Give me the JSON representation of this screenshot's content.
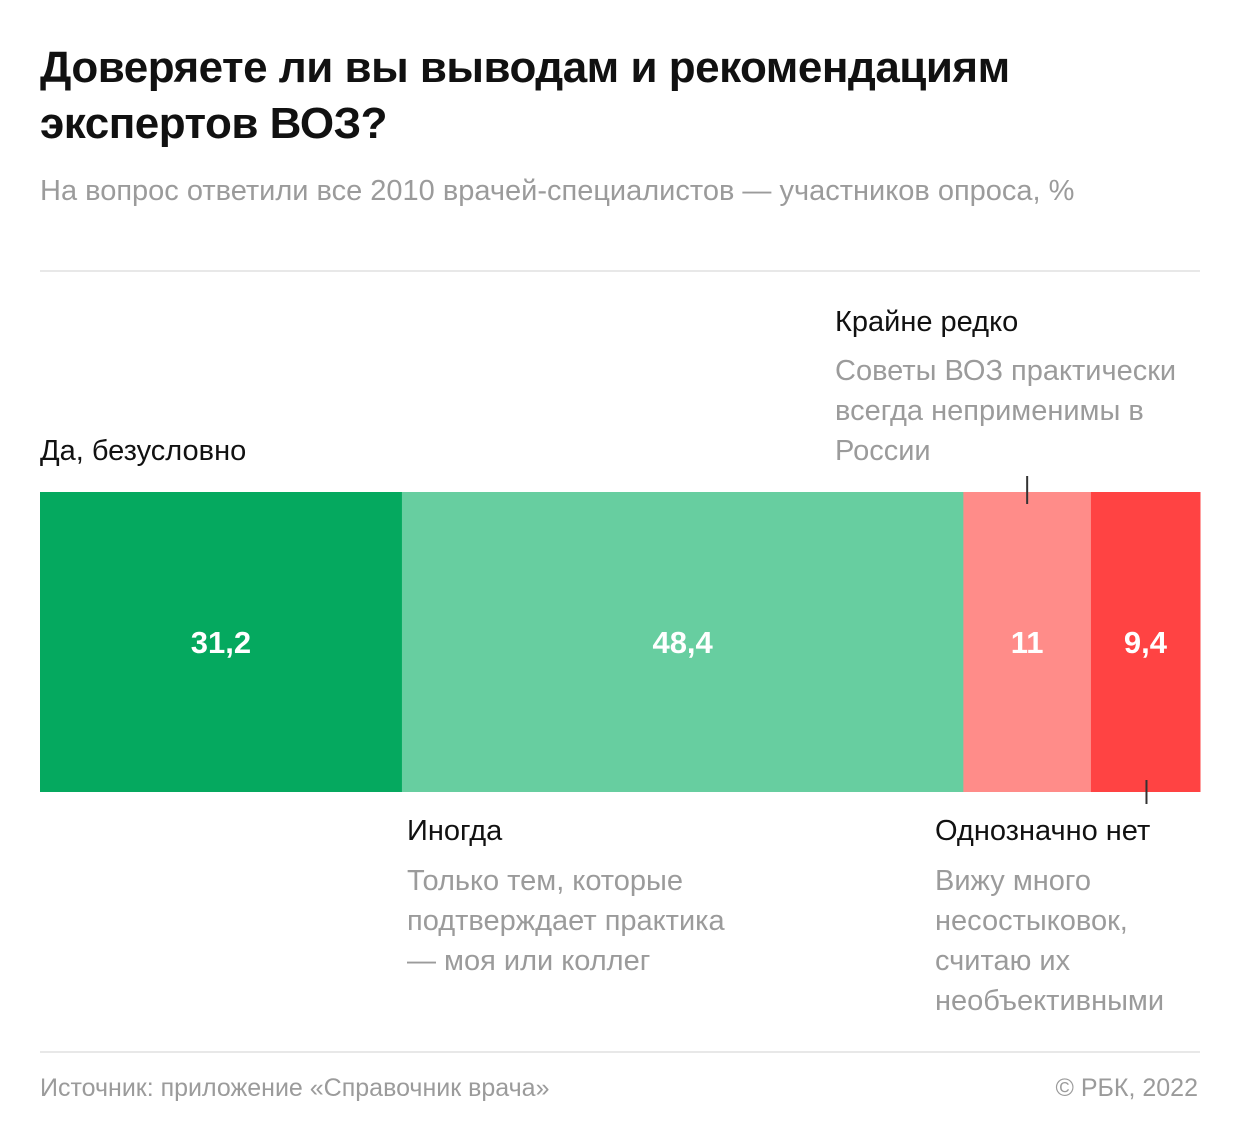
{
  "header": {
    "title": "Доверяете ли вы выводам и рекомендациям экспертов ВОЗ?",
    "subtitle": "На вопрос ответили все 2010 врачей-специалистов — участников опроса, %"
  },
  "chart_data": {
    "type": "bar",
    "orientation": "horizontal-stacked",
    "title": "Доверяете ли вы выводам и рекомендациям экспертов ВОЗ?",
    "subtitle": "На вопрос ответили все 2010 врачей-специалистов — участников опроса, %",
    "unit": "%",
    "xlim": [
      0,
      100
    ],
    "series": [
      {
        "name": "Да, безусловно",
        "value": 31.2,
        "label": "31,2",
        "color": "#05a95f",
        "note": ""
      },
      {
        "name": "Иногда",
        "value": 48.4,
        "label": "48,4",
        "color": "#67cea0",
        "note": "Только тем, которые подтверждает практика — моя или коллег"
      },
      {
        "name": "Крайне редко",
        "value": 11,
        "label": "11",
        "color": "#ff8c89",
        "note": "Советы ВОЗ практически всегда неприменимы в России"
      },
      {
        "name": "Однозначно нет",
        "value": 9.4,
        "label": "9,4",
        "color": "#ff4343",
        "note": "Вижу много несостыковок, считаю их необъективными"
      }
    ]
  },
  "footer": {
    "source": "Источник: приложение «Справочник врача»",
    "copyright": "© РБК, 2022"
  }
}
